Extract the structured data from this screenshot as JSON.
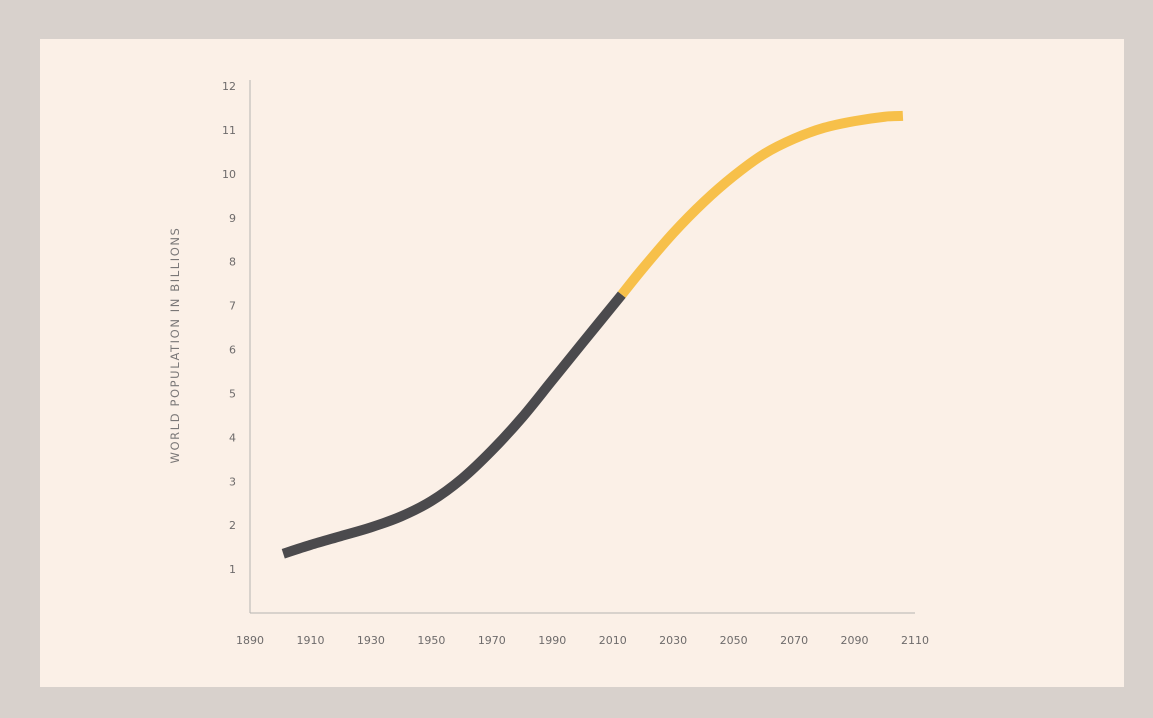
{
  "chart_data": {
    "type": "line",
    "title": "",
    "xlabel": "",
    "ylabel": "WORLD POPULATION IN BILLIONS",
    "xlim": [
      1890,
      2110
    ],
    "ylim": [
      0,
      12
    ],
    "x_ticks": [
      "1890",
      "1910",
      "1930",
      "1950",
      "1970",
      "1990",
      "2010",
      "2030",
      "2050",
      "2070",
      "2090",
      "2110"
    ],
    "y_ticks": [
      "1",
      "2",
      "3",
      "4",
      "5",
      "6",
      "7",
      "8",
      "9",
      "10",
      "11",
      "12"
    ],
    "grid": false,
    "colors": {
      "historical": "#4b4a4d",
      "projection": "#f7c04a",
      "axis": "#b6b3b1"
    },
    "series": [
      {
        "key": "historical",
        "x": [
          1901,
          1910,
          1920,
          1930,
          1940,
          1950,
          1960,
          1970,
          1980,
          1990,
          2000,
          2013
        ],
        "y": [
          1.35,
          1.55,
          1.75,
          1.95,
          2.2,
          2.55,
          3.05,
          3.7,
          4.45,
          5.3,
          6.15,
          7.25
        ]
      },
      {
        "key": "projection",
        "x": [
          2013,
          2020,
          2030,
          2040,
          2050,
          2060,
          2070,
          2080,
          2090,
          2100,
          2106
        ],
        "y": [
          7.25,
          7.85,
          8.65,
          9.35,
          9.95,
          10.45,
          10.8,
          11.05,
          11.2,
          11.3,
          11.32
        ]
      }
    ]
  }
}
